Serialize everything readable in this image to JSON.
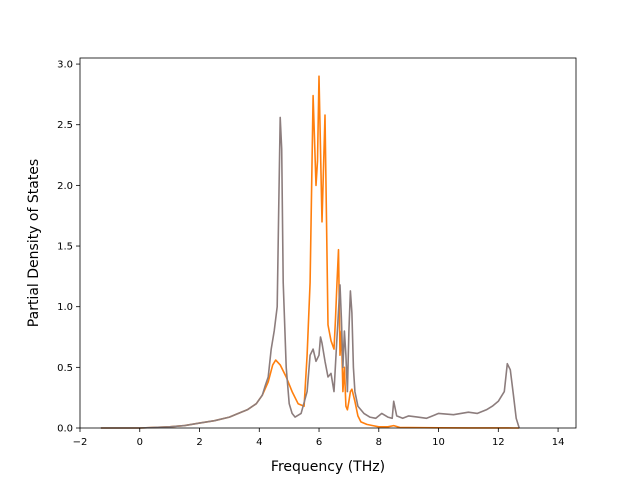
{
  "chart_data": {
    "type": "line",
    "title": "",
    "xlabel": "Frequency (THz)",
    "ylabel": "Partial Density of States",
    "xlim": [
      -2,
      14.6
    ],
    "ylim": [
      0,
      3.05
    ],
    "xticks": [
      -2,
      0,
      2,
      4,
      6,
      8,
      10,
      12,
      14
    ],
    "yticks": [
      0.0,
      0.5,
      1.0,
      1.5,
      2.0,
      2.5,
      3.0
    ],
    "xtick_labels": [
      "−2",
      "0",
      "2",
      "4",
      "6",
      "8",
      "10",
      "12",
      "14"
    ],
    "ytick_labels": [
      "0.0",
      "0.5",
      "1.0",
      "1.5",
      "2.0",
      "2.5",
      "3.0"
    ],
    "grid": false,
    "legend": "none",
    "series": [
      {
        "color": "#ff7f0e",
        "x": [
          -1.3,
          0.0,
          0.5,
          1.0,
          1.5,
          2.0,
          2.5,
          3.0,
          3.3,
          3.6,
          3.9,
          4.1,
          4.3,
          4.45,
          4.55,
          4.7,
          4.9,
          5.1,
          5.3,
          5.5,
          5.6,
          5.7,
          5.8,
          5.9,
          5.95,
          6.0,
          6.1,
          6.2,
          6.3,
          6.4,
          6.5,
          6.55,
          6.6,
          6.65,
          6.7,
          6.75,
          6.8,
          6.85,
          6.9,
          6.95,
          7.0,
          7.05,
          7.1,
          7.2,
          7.3,
          7.4,
          7.6,
          7.8,
          8.0,
          8.3,
          8.5,
          8.7,
          9.0,
          10.0,
          11.0,
          12.0,
          12.5,
          12.7
        ],
        "y": [
          0.0,
          0.0,
          0.005,
          0.01,
          0.02,
          0.04,
          0.06,
          0.09,
          0.12,
          0.15,
          0.2,
          0.27,
          0.38,
          0.52,
          0.56,
          0.52,
          0.42,
          0.3,
          0.2,
          0.18,
          0.6,
          1.2,
          2.74,
          2.0,
          2.2,
          2.9,
          1.7,
          2.58,
          0.85,
          0.72,
          0.65,
          0.9,
          1.2,
          1.47,
          0.6,
          0.8,
          0.3,
          0.5,
          0.18,
          0.15,
          0.22,
          0.3,
          0.32,
          0.22,
          0.1,
          0.05,
          0.03,
          0.02,
          0.01,
          0.01,
          0.02,
          0.005,
          0.003,
          0.002,
          0.001,
          0.001,
          0.0,
          0.0
        ]
      },
      {
        "color": "#8c7d7d",
        "x": [
          -1.3,
          0.0,
          0.5,
          1.0,
          1.5,
          2.0,
          2.5,
          3.0,
          3.3,
          3.6,
          3.9,
          4.1,
          4.2,
          4.3,
          4.4,
          4.5,
          4.6,
          4.65,
          4.7,
          4.75,
          4.8,
          4.9,
          5.0,
          5.1,
          5.2,
          5.4,
          5.6,
          5.7,
          5.8,
          5.9,
          6.0,
          6.05,
          6.1,
          6.2,
          6.3,
          6.4,
          6.5,
          6.6,
          6.7,
          6.75,
          6.8,
          6.85,
          6.9,
          6.95,
          7.0,
          7.05,
          7.1,
          7.15,
          7.2,
          7.3,
          7.5,
          7.7,
          7.9,
          8.1,
          8.3,
          8.45,
          8.5,
          8.6,
          8.8,
          9.0,
          9.3,
          9.6,
          9.8,
          10.0,
          10.5,
          11.0,
          11.3,
          11.6,
          11.8,
          12.0,
          12.2,
          12.3,
          12.4,
          12.5,
          12.6,
          12.7
        ],
        "y": [
          0.0,
          0.0,
          0.005,
          0.01,
          0.02,
          0.04,
          0.06,
          0.09,
          0.12,
          0.15,
          0.2,
          0.27,
          0.35,
          0.42,
          0.65,
          0.8,
          1.0,
          1.8,
          2.56,
          2.3,
          1.2,
          0.5,
          0.2,
          0.12,
          0.09,
          0.12,
          0.3,
          0.6,
          0.65,
          0.55,
          0.6,
          0.75,
          0.7,
          0.55,
          0.42,
          0.45,
          0.3,
          0.75,
          1.18,
          0.9,
          0.5,
          0.8,
          0.6,
          0.3,
          0.8,
          1.13,
          0.95,
          0.5,
          0.3,
          0.18,
          0.12,
          0.09,
          0.08,
          0.12,
          0.09,
          0.08,
          0.22,
          0.1,
          0.08,
          0.1,
          0.09,
          0.08,
          0.1,
          0.12,
          0.11,
          0.13,
          0.12,
          0.15,
          0.18,
          0.22,
          0.3,
          0.53,
          0.48,
          0.28,
          0.08,
          0.0
        ]
      }
    ]
  }
}
